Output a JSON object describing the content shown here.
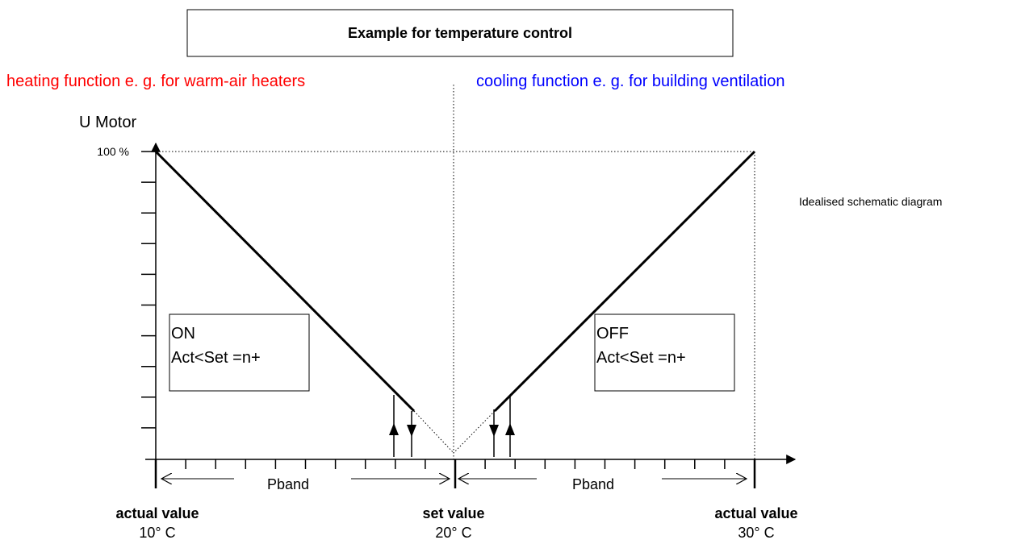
{
  "title": "Example for temperature control",
  "heating_label": "heating function e. g. for warm-air heaters",
  "cooling_label": "cooling function e. g. for building ventilation",
  "y_axis_label": "U Motor",
  "y_max_label": "100 %",
  "note": "Idealised schematic diagram",
  "left_box": {
    "line1": "ON",
    "line2": "Act<Set =n+"
  },
  "right_box": {
    "line1": "OFF",
    "line2": "Act<Set =n+"
  },
  "pband_left": "Pband",
  "pband_right": "Pband",
  "bottom": [
    {
      "label": "actual value",
      "value": "10° C"
    },
    {
      "label": "set value",
      "value": "20° C"
    },
    {
      "label": "actual value",
      "value": "30° C"
    }
  ]
}
